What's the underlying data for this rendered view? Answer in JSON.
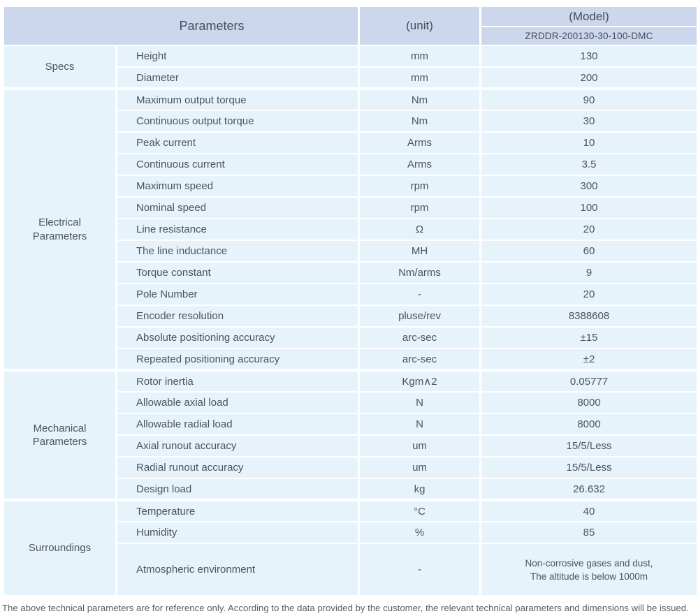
{
  "colors": {
    "header_bg": "#ccd6ec",
    "row_bg": "#e6f3fb",
    "grid": "#ffffff",
    "text": "#4c545c"
  },
  "table": {
    "header": {
      "parameters_label": "Parameters",
      "unit_label": "(unit)",
      "model_label": "(Model)",
      "model_value": "ZRDDR-200130-30-100-DMC"
    },
    "sections": [
      {
        "id": "specs",
        "group_lines": [
          "Specs"
        ],
        "rows": [
          {
            "param": "Height",
            "unit": "mm",
            "value": "130"
          },
          {
            "param": "Diameter",
            "unit": "mm",
            "value": "200"
          }
        ]
      },
      {
        "id": "electrical-parameters",
        "group_lines": [
          "Electrical",
          "Parameters"
        ],
        "rows": [
          {
            "param": "Maximum output torque",
            "unit": "Nm",
            "value": "90"
          },
          {
            "param": "Continuous output torque",
            "unit": "Nm",
            "value": "30"
          },
          {
            "param": "Peak current",
            "unit": "Arms",
            "value": "10"
          },
          {
            "param": "Continuous current",
            "unit": "Arms",
            "value": "3.5"
          },
          {
            "param": "Maximum speed",
            "unit": "rpm",
            "value": "300"
          },
          {
            "param": "Nominal speed",
            "unit": "rpm",
            "value": "100"
          },
          {
            "param": "Line resistance",
            "unit": "Ω",
            "value": "20"
          },
          {
            "param": "The line inductance",
            "unit": "MH",
            "value": "60"
          },
          {
            "param": "Torque constant",
            "unit": "Nm/arms",
            "value": "9"
          },
          {
            "param": "Pole Number",
            "unit": "-",
            "value": "20"
          },
          {
            "param": "Encoder resolution",
            "unit": "pluse/rev",
            "value": "8388608"
          },
          {
            "param": "Absolute positioning accuracy",
            "unit": "arc-sec",
            "value": "±15"
          },
          {
            "param": "Repeated positioning accuracy",
            "unit": "arc-sec",
            "value": "±2"
          }
        ]
      },
      {
        "id": "mechanical-parameters",
        "group_lines": [
          "Mechanical",
          "Parameters"
        ],
        "rows": [
          {
            "param": "Rotor inertia",
            "unit": "Kgm∧2",
            "value": "0.05777"
          },
          {
            "param": "Allowable axial load",
            "unit": "N",
            "value": "8000"
          },
          {
            "param": "Allowable radial load",
            "unit": "N",
            "value": "8000"
          },
          {
            "param": "Axial runout accuracy",
            "unit": "um",
            "value": "15/5/Less"
          },
          {
            "param": "Radial runout accuracy",
            "unit": "um",
            "value": "15/5/Less"
          },
          {
            "param": "Design load",
            "unit": "kg",
            "value": "26.632"
          }
        ]
      },
      {
        "id": "surroundings",
        "group_lines": [
          "Surroundings"
        ],
        "rows": [
          {
            "param": "Temperature",
            "unit": "°C",
            "value": "40"
          },
          {
            "param": "Humidity",
            "unit": "%",
            "value": "85"
          },
          {
            "param": "Atmospheric environment",
            "unit": "-",
            "value": [
              "Non-corrosive gases and dust,",
              "The altitude is below 1000m"
            ],
            "tall": true
          }
        ]
      }
    ]
  },
  "footer": {
    "note": "The above technical parameters are for reference only. According to the data provided by the customer, the relevant technical parameters and dimensions will be issued."
  }
}
